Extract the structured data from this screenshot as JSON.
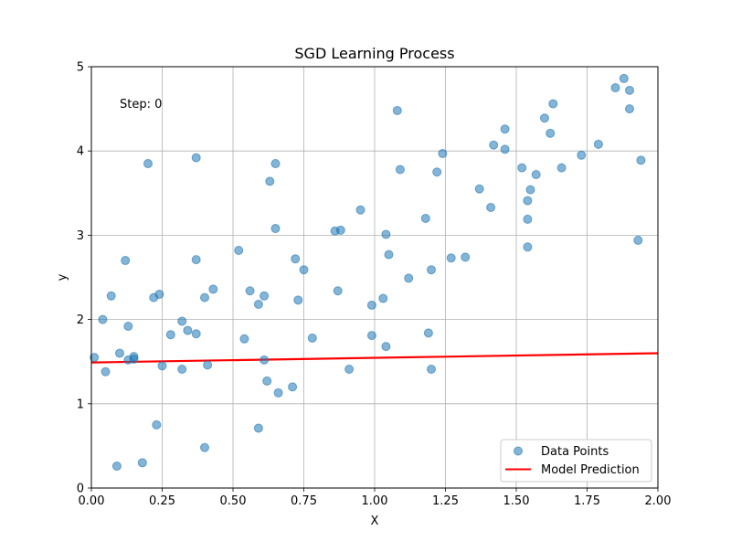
{
  "colors": {
    "scatter": "#1f77b4",
    "line": "#ff0000",
    "grid": "#b0b0b0",
    "axes": "#000000"
  },
  "chart_data": {
    "type": "scatter",
    "title": "SGD Learning Process",
    "xlabel": "X",
    "ylabel": "y",
    "xlim": [
      0,
      2
    ],
    "ylim": [
      0,
      5
    ],
    "grid": true,
    "legend_position": "lower-right",
    "x_ticks": [
      "0.00",
      "0.25",
      "0.50",
      "0.75",
      "1.00",
      "1.25",
      "1.50",
      "1.75",
      "2.00"
    ],
    "y_ticks": [
      "0",
      "1",
      "2",
      "3",
      "4",
      "5"
    ],
    "annotation": "Step: 0",
    "series": [
      {
        "name": "Data Points",
        "kind": "scatter",
        "points": [
          [
            0.01,
            1.55
          ],
          [
            0.04,
            2.0
          ],
          [
            0.05,
            1.38
          ],
          [
            0.07,
            2.28
          ],
          [
            0.09,
            0.26
          ],
          [
            0.1,
            1.6
          ],
          [
            0.12,
            2.7
          ],
          [
            0.13,
            1.92
          ],
          [
            0.13,
            1.52
          ],
          [
            0.15,
            1.53
          ],
          [
            0.15,
            1.56
          ],
          [
            0.18,
            0.3
          ],
          [
            0.2,
            3.85
          ],
          [
            0.22,
            2.26
          ],
          [
            0.23,
            0.75
          ],
          [
            0.24,
            2.3
          ],
          [
            0.25,
            1.45
          ],
          [
            0.28,
            1.82
          ],
          [
            0.32,
            1.41
          ],
          [
            0.32,
            1.98
          ],
          [
            0.34,
            1.87
          ],
          [
            0.37,
            1.83
          ],
          [
            0.37,
            2.71
          ],
          [
            0.37,
            3.92
          ],
          [
            0.4,
            2.26
          ],
          [
            0.4,
            0.48
          ],
          [
            0.41,
            1.46
          ],
          [
            0.43,
            2.36
          ],
          [
            0.52,
            2.82
          ],
          [
            0.54,
            1.77
          ],
          [
            0.56,
            2.34
          ],
          [
            0.59,
            0.71
          ],
          [
            0.59,
            2.18
          ],
          [
            0.61,
            1.52
          ],
          [
            0.61,
            2.28
          ],
          [
            0.62,
            1.27
          ],
          [
            0.63,
            3.64
          ],
          [
            0.65,
            3.85
          ],
          [
            0.65,
            3.08
          ],
          [
            0.66,
            1.13
          ],
          [
            0.71,
            1.2
          ],
          [
            0.72,
            2.72
          ],
          [
            0.73,
            2.23
          ],
          [
            0.75,
            2.59
          ],
          [
            0.78,
            1.78
          ],
          [
            0.86,
            3.05
          ],
          [
            0.87,
            2.34
          ],
          [
            0.88,
            3.06
          ],
          [
            0.91,
            1.41
          ],
          [
            0.95,
            3.3
          ],
          [
            0.99,
            2.17
          ],
          [
            0.99,
            1.81
          ],
          [
            1.03,
            2.25
          ],
          [
            1.04,
            1.68
          ],
          [
            1.04,
            3.01
          ],
          [
            1.05,
            2.77
          ],
          [
            1.08,
            4.48
          ],
          [
            1.09,
            3.78
          ],
          [
            1.12,
            2.49
          ],
          [
            1.18,
            3.2
          ],
          [
            1.19,
            1.84
          ],
          [
            1.2,
            1.41
          ],
          [
            1.2,
            2.59
          ],
          [
            1.22,
            3.75
          ],
          [
            1.24,
            3.97
          ],
          [
            1.27,
            2.73
          ],
          [
            1.32,
            2.74
          ],
          [
            1.37,
            3.55
          ],
          [
            1.41,
            3.33
          ],
          [
            1.42,
            4.07
          ],
          [
            1.46,
            4.26
          ],
          [
            1.46,
            4.02
          ],
          [
            1.52,
            3.8
          ],
          [
            1.54,
            3.41
          ],
          [
            1.54,
            3.19
          ],
          [
            1.54,
            2.86
          ],
          [
            1.55,
            3.54
          ],
          [
            1.57,
            3.72
          ],
          [
            1.6,
            4.39
          ],
          [
            1.62,
            4.21
          ],
          [
            1.63,
            4.56
          ],
          [
            1.66,
            3.8
          ],
          [
            1.73,
            3.95
          ],
          [
            1.79,
            4.08
          ],
          [
            1.85,
            4.75
          ],
          [
            1.88,
            4.86
          ],
          [
            1.9,
            4.72
          ],
          [
            1.9,
            4.5
          ],
          [
            1.93,
            2.94
          ],
          [
            1.94,
            3.89
          ]
        ]
      },
      {
        "name": "Model Prediction",
        "kind": "line",
        "x": [
          0,
          2
        ],
        "y": [
          1.49,
          1.6
        ]
      }
    ]
  }
}
